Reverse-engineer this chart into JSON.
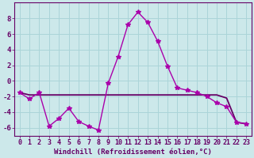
{
  "xlabel": "Windchill (Refroidissement éolien,°C)",
  "hours": [
    0,
    1,
    2,
    3,
    4,
    5,
    6,
    7,
    8,
    9,
    10,
    11,
    12,
    13,
    14,
    15,
    16,
    17,
    18,
    19,
    20,
    21,
    22,
    23
  ],
  "windchill_line": [
    -1.5,
    -2.3,
    -1.5,
    -5.8,
    -4.8,
    -3.5,
    -5.2,
    -5.8,
    -6.3,
    -0.3,
    3.1,
    7.2,
    8.8,
    7.5,
    5.1,
    1.9,
    -0.9,
    -1.2,
    -1.5,
    -2.0,
    -2.8,
    -3.3,
    -5.3,
    -5.5
  ],
  "temp_line": [
    -1.5,
    -1.8,
    -1.8,
    -1.8,
    -1.8,
    -1.8,
    -1.8,
    -1.8,
    -1.8,
    -1.8,
    -1.8,
    -1.8,
    -1.8,
    -1.8,
    -1.8,
    -1.8,
    -1.8,
    -1.8,
    -1.8,
    -1.8,
    -1.8,
    -2.2,
    -5.3,
    -5.5
  ],
  "ylim": [
    -7,
    10
  ],
  "xlim": [
    -0.5,
    23.5
  ],
  "yticks": [
    -6,
    -4,
    -2,
    0,
    2,
    4,
    6,
    8
  ],
  "bg_color": "#cce8ea",
  "grid_color": "#aad4d8",
  "wc_color": "#aa00aa",
  "temp_color": "#660066",
  "text_color": "#660066",
  "axis_label_color": "#660066",
  "font_size": 6.5
}
